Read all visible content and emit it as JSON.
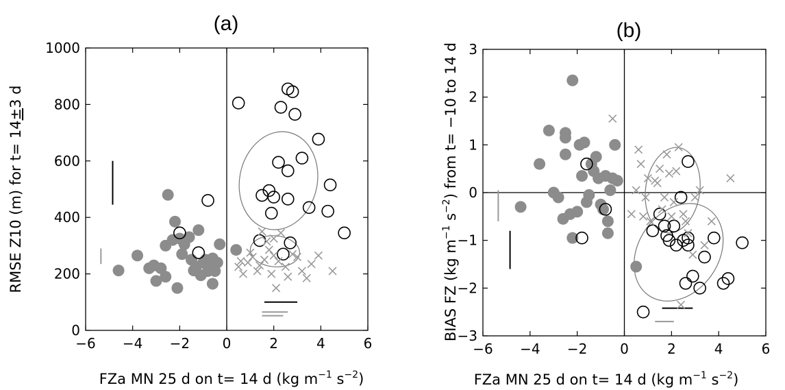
{
  "chart_data": [
    {
      "type": "scatter",
      "panel_label": "(a)",
      "xlabel": "FZa MN 25 d on t= 14 d (kg m^-1 s^-2)",
      "xlabel_parts": {
        "main": "FZa MN 25 d on t= 14 d (kg m",
        "exp1": "−1",
        "mid": " s",
        "exp2": "−2",
        "end": ")"
      },
      "ylabel": "RMSE Z10 (m) for t= 14±3 d",
      "ylabel_parts": {
        "main": "RMSE Z10 (m) for t= 14",
        "pm": "±",
        "end": "3 d"
      },
      "xlim": [
        -6,
        6
      ],
      "ylim": [
        0,
        1000
      ],
      "xticks": [
        -6,
        -4,
        -2,
        0,
        2,
        4,
        6
      ],
      "yticks": [
        0,
        200,
        400,
        600,
        800,
        1000
      ],
      "xtick_labels": [
        "−6",
        "−4",
        "−2",
        "0",
        "2",
        "4",
        "6"
      ],
      "ytick_labels": [
        "0",
        "200",
        "400",
        "600",
        "800",
        "1000"
      ],
      "colors": {
        "filled": "#8c8c8c",
        "open": "#000000",
        "cross": "#999999",
        "ellipse": "#777777"
      },
      "series": [
        {
          "marker": "filled-circle",
          "points": [
            [
              -4.6,
              212
            ],
            [
              -3.8,
              265
            ],
            [
              -3.3,
              220
            ],
            [
              -3.1,
              230
            ],
            [
              -3.0,
              175
            ],
            [
              -2.8,
              220
            ],
            [
              -2.6,
              300
            ],
            [
              -2.6,
              190
            ],
            [
              -2.5,
              480
            ],
            [
              -2.3,
              320
            ],
            [
              -2.2,
              385
            ],
            [
              -2.1,
              150
            ],
            [
              -2.0,
              325
            ],
            [
              -1.9,
              270
            ],
            [
              -1.8,
              305
            ],
            [
              -1.6,
              330
            ],
            [
              -1.5,
              250
            ],
            [
              -1.4,
              212
            ],
            [
              -1.3,
              225
            ],
            [
              -1.2,
              355
            ],
            [
              -1.1,
              195
            ],
            [
              -1.0,
              240
            ],
            [
              -0.9,
              250
            ],
            [
              -0.8,
              210
            ],
            [
              -0.7,
              230
            ],
            [
              -0.6,
              255
            ],
            [
              -0.5,
              210
            ],
            [
              -0.6,
              165
            ],
            [
              -0.4,
              240
            ],
            [
              -0.3,
              305
            ],
            [
              0.4,
              285
            ]
          ]
        },
        {
          "marker": "open-circle",
          "points": [
            [
              0.5,
              805
            ],
            [
              1.4,
              318
            ],
            [
              1.5,
              478
            ],
            [
              1.8,
              495
            ],
            [
              1.9,
              415
            ],
            [
              2.0,
              472
            ],
            [
              2.2,
              595
            ],
            [
              2.3,
              790
            ],
            [
              2.4,
              270
            ],
            [
              2.6,
              465
            ],
            [
              2.6,
              565
            ],
            [
              2.6,
              855
            ],
            [
              2.7,
              310
            ],
            [
              2.8,
              845
            ],
            [
              2.9,
              765
            ],
            [
              3.2,
              610
            ],
            [
              3.5,
              435
            ],
            [
              3.9,
              677
            ],
            [
              4.3,
              422
            ],
            [
              4.4,
              515
            ],
            [
              5.0,
              345
            ],
            [
              -2.0,
              345
            ],
            [
              -1.2,
              275
            ],
            [
              -0.8,
              460
            ]
          ]
        },
        {
          "marker": "cross",
          "points": [
            [
              0.5,
              225
            ],
            [
              0.6,
              245
            ],
            [
              0.7,
              200
            ],
            [
              0.9,
              240
            ],
            [
              1.0,
              275
            ],
            [
              1.1,
              260
            ],
            [
              1.3,
              210
            ],
            [
              1.4,
              230
            ],
            [
              1.5,
              350
            ],
            [
              1.6,
              250
            ],
            [
              1.7,
              315
            ],
            [
              1.8,
              285
            ],
            [
              1.9,
              200
            ],
            [
              2.0,
              265
            ],
            [
              2.1,
              150
            ],
            [
              2.2,
              245
            ],
            [
              2.3,
              345
            ],
            [
              2.5,
              225
            ],
            [
              2.6,
              190
            ],
            [
              2.8,
              270
            ],
            [
              3.0,
              260
            ],
            [
              3.2,
              210
            ],
            [
              3.4,
              185
            ],
            [
              3.6,
              235
            ],
            [
              3.9,
              265
            ],
            [
              4.5,
              210
            ],
            [
              2.0,
              325
            ]
          ]
        }
      ],
      "ellipses": [
        {
          "cx": 2.2,
          "cy": 530,
          "rx": 1.65,
          "ry": 175,
          "rotate": 12
        },
        {
          "cx": 2.05,
          "cy": 280,
          "rx": 1.05,
          "ry": 55,
          "rotate": 5
        }
      ],
      "error_bars": [
        {
          "type": "vertical",
          "x": -4.85,
          "y1": 445,
          "y2": 600,
          "color": "#000000"
        },
        {
          "type": "vertical",
          "x": -5.35,
          "y1": 235,
          "y2": 290,
          "color": "#999999"
        },
        {
          "type": "horizontal",
          "y": 100,
          "x1": 1.6,
          "x2": 3.0,
          "color": "#000000"
        },
        {
          "type": "horizontal",
          "y": 65,
          "x1": 1.5,
          "x2": 2.6,
          "color": "#999999"
        },
        {
          "type": "horizontal",
          "y": 52,
          "x1": 1.5,
          "x2": 2.4,
          "color": "#999999"
        }
      ]
    },
    {
      "type": "scatter",
      "panel_label": "(b)",
      "xlabel": "FZa MN 25 d on t= 14 d (kg m^-1 s^-2)",
      "xlabel_parts": {
        "main": "FZa MN 25 d on t= 14 d (kg m",
        "exp1": "−1",
        "mid": " s",
        "exp2": "−2",
        "end": ")"
      },
      "ylabel": "BIAS FZ (kg m^-1 s^-2) from t= -10 to 14 d",
      "ylabel_parts": {
        "main": "BIAS FZ (kg m",
        "exp1": "−1",
        "mid": " s",
        "exp2": "−2",
        "end": ") from t= −10 to 14 d"
      },
      "xlim": [
        -6,
        6
      ],
      "ylim": [
        -3,
        3
      ],
      "xticks": [
        -6,
        -4,
        -2,
        0,
        2,
        4,
        6
      ],
      "yticks": [
        -3,
        -2,
        -1,
        0,
        1,
        2,
        3
      ],
      "xtick_labels": [
        "−6",
        "−4",
        "−2",
        "0",
        "2",
        "4",
        "6"
      ],
      "ytick_labels": [
        "−3",
        "−2",
        "−1",
        "0",
        "1",
        "2",
        "3"
      ],
      "colors": {
        "filled": "#8c8c8c",
        "open": "#000000",
        "cross": "#999999",
        "ellipse": "#777777"
      },
      "series": [
        {
          "marker": "filled-circle",
          "points": [
            [
              -4.4,
              -0.3
            ],
            [
              -3.6,
              0.6
            ],
            [
              -3.2,
              1.3
            ],
            [
              -3.0,
              0.0
            ],
            [
              -2.8,
              -0.1
            ],
            [
              -2.6,
              -0.55
            ],
            [
              -2.5,
              1.25
            ],
            [
              -2.5,
              1.15
            ],
            [
              -2.5,
              0.8
            ],
            [
              -2.3,
              -0.45
            ],
            [
              -2.2,
              2.35
            ],
            [
              -2.2,
              -0.95
            ],
            [
              -2.0,
              -0.4
            ],
            [
              -1.9,
              1.0
            ],
            [
              -1.8,
              0.35
            ],
            [
              -1.7,
              1.05
            ],
            [
              -1.6,
              -0.2
            ],
            [
              -1.5,
              -0.05
            ],
            [
              -1.4,
              0.6
            ],
            [
              -1.3,
              0.45
            ],
            [
              -1.2,
              0.75
            ],
            [
              -1.1,
              0.3
            ],
            [
              -1.0,
              -0.25
            ],
            [
              -0.9,
              -0.35
            ],
            [
              -0.8,
              0.35
            ],
            [
              -0.7,
              -0.6
            ],
            [
              -0.7,
              -0.85
            ],
            [
              -0.6,
              0.05
            ],
            [
              -0.5,
              0.3
            ],
            [
              -0.4,
              1.0
            ],
            [
              -0.3,
              0.25
            ],
            [
              0.5,
              -1.55
            ]
          ]
        },
        {
          "marker": "open-circle",
          "points": [
            [
              0.8,
              -2.5
            ],
            [
              1.2,
              -0.8
            ],
            [
              1.5,
              -0.45
            ],
            [
              1.7,
              -0.7
            ],
            [
              1.8,
              -0.9
            ],
            [
              1.9,
              -1.0
            ],
            [
              2.1,
              -0.7
            ],
            [
              2.2,
              -1.1
            ],
            [
              2.4,
              -0.1
            ],
            [
              2.5,
              -1.0
            ],
            [
              2.6,
              -1.9
            ],
            [
              2.7,
              -1.1
            ],
            [
              2.7,
              -0.95
            ],
            [
              2.7,
              0.65
            ],
            [
              2.9,
              -1.75
            ],
            [
              3.2,
              -2.0
            ],
            [
              3.4,
              -1.35
            ],
            [
              3.8,
              -0.95
            ],
            [
              4.2,
              -1.9
            ],
            [
              4.4,
              -1.8
            ],
            [
              5.0,
              -1.05
            ],
            [
              -1.8,
              -0.95
            ],
            [
              -1.6,
              0.6
            ],
            [
              -0.8,
              -0.35
            ]
          ]
        },
        {
          "marker": "cross",
          "points": [
            [
              0.3,
              -0.45
            ],
            [
              0.5,
              0.05
            ],
            [
              0.6,
              0.9
            ],
            [
              0.7,
              0.6
            ],
            [
              0.8,
              -0.5
            ],
            [
              0.9,
              -0.1
            ],
            [
              1.0,
              0.3
            ],
            [
              1.1,
              -0.6
            ],
            [
              1.3,
              0.25
            ],
            [
              1.4,
              0.2
            ],
            [
              1.5,
              0.5
            ],
            [
              1.6,
              -0.35
            ],
            [
              1.7,
              -0.1
            ],
            [
              1.8,
              0.8
            ],
            [
              1.9,
              0.4
            ],
            [
              2.0,
              -0.5
            ],
            [
              2.1,
              -0.2
            ],
            [
              2.2,
              0.45
            ],
            [
              2.3,
              0.95
            ],
            [
              2.5,
              -0.45
            ],
            [
              2.6,
              -0.6
            ],
            [
              2.7,
              -0.85
            ],
            [
              2.9,
              -1.3
            ],
            [
              3.0,
              -0.1
            ],
            [
              3.2,
              0.05
            ],
            [
              3.4,
              -1.1
            ],
            [
              3.7,
              -0.6
            ],
            [
              4.5,
              0.3
            ],
            [
              -0.5,
              1.55
            ],
            [
              2.4,
              -2.35
            ]
          ]
        }
      ],
      "ellipses": [
        {
          "cx": 2.05,
          "cy": 0.05,
          "rx": 1.15,
          "ry": 0.9,
          "rotate": 8
        },
        {
          "cx": 2.3,
          "cy": -1.25,
          "rx": 1.7,
          "ry": 1.1,
          "rotate": 35
        }
      ],
      "error_bars": [
        {
          "type": "vertical",
          "x": -4.85,
          "y1": -1.6,
          "y2": -0.8,
          "color": "#000000"
        },
        {
          "type": "vertical",
          "x": -5.35,
          "y1": -0.6,
          "y2": 0.05,
          "color": "#999999"
        },
        {
          "type": "horizontal",
          "y": -2.42,
          "x1": 1.6,
          "x2": 2.9,
          "color": "#000000"
        },
        {
          "type": "horizontal",
          "y": -2.7,
          "x1": 1.3,
          "x2": 2.1,
          "color": "#999999"
        }
      ]
    }
  ]
}
